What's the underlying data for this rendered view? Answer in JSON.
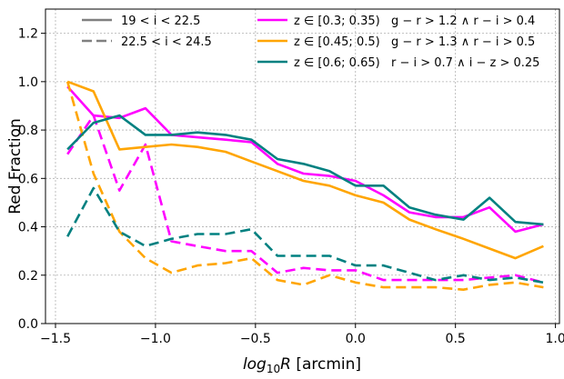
{
  "chart_data": {
    "type": "line",
    "xlabel": "log₁₀R [arcmin]",
    "ylabel": "Red Fraction",
    "xlim": [
      -1.55,
      1.02
    ],
    "ylim": [
      0.0,
      1.3
    ],
    "xticks": [
      -1.5,
      -1.0,
      -0.5,
      0.0,
      0.5,
      1.0
    ],
    "xtick_labels": [
      "−1.5",
      "−1.0",
      "−0.5",
      "0.0",
      "0.5",
      "1.0"
    ],
    "yticks": [
      0.0,
      0.2,
      0.4,
      0.6,
      0.8,
      1.0,
      1.2
    ],
    "ytick_labels": [
      "0.0",
      "0.2",
      "0.4",
      "0.6",
      "0.8",
      "1.0",
      "1.2"
    ],
    "grid": true,
    "legend_position": "top",
    "style_legend": [
      {
        "label": "19 < i < 22.5",
        "linestyle": "solid",
        "color": "#808080"
      },
      {
        "label": "22.5 < i < 24.5",
        "linestyle": "dashed",
        "color": "#808080"
      }
    ],
    "x": [
      -1.44,
      -1.31,
      -1.18,
      -1.05,
      -0.92,
      -0.79,
      -0.65,
      -0.52,
      -0.39,
      -0.26,
      -0.13,
      0.0,
      0.14,
      0.27,
      0.4,
      0.54,
      0.67,
      0.8,
      0.94
    ],
    "series": [
      {
        "name": "z ∈ [0.3; 0.35)",
        "cut": "g − r > 1.2 ∧ r − i > 0.4",
        "color": "#ff00ff",
        "bright": [
          0.98,
          0.86,
          0.85,
          0.89,
          0.78,
          0.77,
          0.76,
          0.75,
          0.66,
          0.62,
          0.61,
          0.59,
          0.53,
          0.46,
          0.44,
          0.44,
          0.48,
          0.38,
          0.41
        ],
        "faint": [
          0.7,
          0.86,
          0.55,
          0.74,
          0.34,
          0.32,
          0.3,
          0.3,
          0.21,
          0.23,
          0.22,
          0.22,
          0.18,
          0.18,
          0.18,
          0.18,
          0.19,
          0.2,
          0.17
        ]
      },
      {
        "name": "z ∈ [0.45; 0.5)",
        "cut": "g − r > 1.3 ∧ r − i > 0.5",
        "color": "#ffa500",
        "bright": [
          1.0,
          0.96,
          0.72,
          0.73,
          0.74,
          0.73,
          0.71,
          0.67,
          0.63,
          0.59,
          0.57,
          0.53,
          0.5,
          0.43,
          0.39,
          0.35,
          0.31,
          0.27,
          0.32
        ],
        "faint": [
          1.0,
          0.62,
          0.38,
          0.27,
          0.21,
          0.24,
          0.25,
          0.27,
          0.18,
          0.16,
          0.2,
          0.17,
          0.15,
          0.15,
          0.15,
          0.14,
          0.16,
          0.17,
          0.15
        ]
      },
      {
        "name": "z ∈ [0.6; 0.65)",
        "cut": "r − i > 0.7 ∧ i − z > 0.25",
        "color": "#008080",
        "bright": [
          0.72,
          0.83,
          0.86,
          0.78,
          0.78,
          0.79,
          0.78,
          0.76,
          0.68,
          0.66,
          0.63,
          0.57,
          0.57,
          0.48,
          0.45,
          0.43,
          0.52,
          0.42,
          0.41
        ],
        "faint": [
          0.36,
          0.56,
          0.38,
          0.32,
          0.35,
          0.37,
          0.37,
          0.39,
          0.28,
          0.28,
          0.28,
          0.24,
          0.24,
          0.21,
          0.18,
          0.2,
          0.18,
          0.19,
          0.17
        ]
      }
    ]
  }
}
